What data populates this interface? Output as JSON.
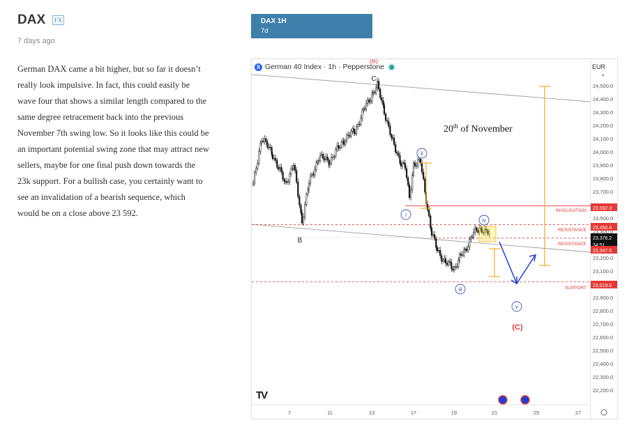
{
  "post": {
    "title": "DAX",
    "badge": "FX",
    "age": "7 days ago",
    "body": "German DAX came a bit higher, but so far it doesn’t really look impulsive. In fact, this could easily be wave four that shows a similar length compared to the same degree retracement back into the previous November 7th swing low. So it looks like this could be an important potential swing zone that may attract new sellers, maybe for one final push down towards the 23k support. For a bullish case, you certainly want to see an invalidation of a bearish sequence, which would be on a close above 23 592."
  },
  "ticker_tab": {
    "symbol": "DAX 1H",
    "period": "7d"
  },
  "chart_header": {
    "instrument": "German 40 Index · 1h · Pepperstone",
    "logo_letter": "X",
    "currency": "EUR",
    "currency_caret": "⌄",
    "tv_logo": "TV"
  },
  "chart_data": {
    "type": "candlestick",
    "x_tick_labels": [
      "7",
      "11",
      "13",
      "17",
      "19",
      "21",
      "25",
      "27"
    ],
    "y_ticks": [
      "24,500.0",
      "24,400.0",
      "24,300.0",
      "24,200.0",
      "24,100.0",
      "24,000.0",
      "23,900.0",
      "23,800.0",
      "23,700.0",
      "23,600.0",
      "23,500.0",
      "23,400.0",
      "23,300.0",
      "23,200.0",
      "23,100.0",
      "23,000.0",
      "22,900.0",
      "22,800.0",
      "22,700.0",
      "22,600.0",
      "22,500.0",
      "22,400.0",
      "22,300.0",
      "22,200.0"
    ],
    "ylim": [
      22150,
      24650
    ],
    "price_tags": [
      {
        "label": "23,592.3",
        "value": 23592.3,
        "color": "#e53935"
      },
      {
        "label": "23,450.4",
        "value": 23450.4,
        "color": "#e53935"
      },
      {
        "label": "23,376.2",
        "value": 23376.2,
        "color": "#111111"
      },
      {
        "label": "34:51",
        "value": 23330,
        "color": "#111111"
      },
      {
        "label": "23,347.5",
        "value": 23347.5,
        "color": "#e53935"
      },
      {
        "label": "23,019.0",
        "value": 23019.0,
        "color": "#e53935"
      }
    ],
    "levels": [
      {
        "label": "INVALIDATION",
        "value": 23592.3,
        "style": "solid"
      },
      {
        "label": "RESISTANCE",
        "value": 23450.4,
        "style": "dashed"
      },
      {
        "label": "RESISTANCE",
        "value": 23347.5,
        "style": "dashed"
      },
      {
        "label": "SUPPORT",
        "value": 23019.0,
        "style": "dashed"
      }
    ],
    "wave_labels": [
      "(B)",
      "C",
      "B",
      "i",
      "ii",
      "iii",
      "iv",
      "v",
      "(C)"
    ],
    "annotation": "20th of November",
    "annotation_sup": "th",
    "annotation_day": "20",
    "annotation_rest": " of November"
  },
  "colors": {
    "accent": "#3f7fab",
    "red": "#e53935",
    "orange": "#f7a823",
    "wave_blue": "#3f51b5",
    "arrow_blue": "#1f3fd6"
  }
}
